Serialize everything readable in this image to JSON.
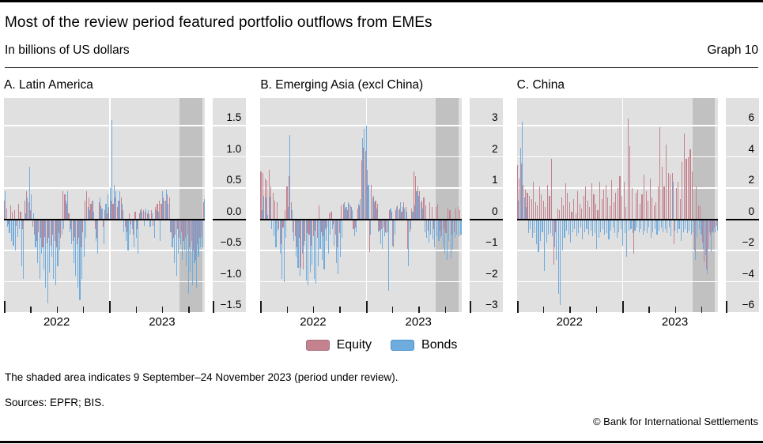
{
  "header": {
    "title": "Most of the review period featured portfolio outflows from EMEs",
    "subtitle": "In billions of US dollars",
    "graph_label": "Graph 10"
  },
  "colors": {
    "equity": "#c4828f",
    "equity_border": "#aa6e7c",
    "bonds": "#6facde",
    "bonds_border": "#4d92cc",
    "plot_bg": "#e0e0e0",
    "shade": "#c1c1c1",
    "gridline": "#ffffff",
    "zero_line": "#000000"
  },
  "legend": {
    "items": [
      {
        "label": "Equity",
        "color_key": "equity"
      },
      {
        "label": "Bonds",
        "color_key": "bonds"
      }
    ]
  },
  "footer": {
    "note": "The shaded area indicates 9 September–24 November 2023 (period under review).",
    "sources": "Sources: EPFR; BIS.",
    "copyright": "© Bank for International Settlements"
  },
  "chart_data": [
    {
      "type": "bar",
      "title": "A. Latin America",
      "x_axis": {
        "frequency": "weekly",
        "start": "Jan 2022",
        "end": "Nov 2023",
        "year_labels": [
          "2022",
          "2023"
        ],
        "year_label_pcts": [
          26.2,
          78.6
        ],
        "major_tick_pcts": [
          0,
          52.4
        ],
        "minor_tick_pcts": [
          13.1,
          26.2,
          39.3,
          65.5,
          78.6,
          91.7
        ],
        "year_line_pct": 52.4
      },
      "ylim": [
        -1.5,
        1.95
      ],
      "ytick_values": [
        1.5,
        1.0,
        0.5,
        0.0,
        -0.5,
        -1.0,
        -1.5
      ],
      "ytick_labels": [
        "1.5",
        "1.0",
        "0.5",
        "0.0",
        "−0.5",
        "−1.0",
        "−1.5"
      ],
      "shade": {
        "from_pct": 87.3,
        "to_pct": 98.5,
        "meaning": "9 September–24 November 2023 (period under review)"
      },
      "series": [
        {
          "name": "Equity",
          "color_key": "equity",
          "values": [
            0.3,
            0.18,
            -0.08,
            0.22,
            0.12,
            0.15,
            -0.1,
            0.25,
            0.12,
            -0.15,
            0.3,
            0.45,
            0.28,
            0.15,
            -0.12,
            -0.25,
            -0.35,
            -0.2,
            -0.3,
            -0.45,
            -0.28,
            -0.38,
            -0.3,
            -0.42,
            -0.25,
            -0.35,
            -0.45,
            -0.22,
            -0.3,
            0.45,
            0.4,
            0.25,
            0.1,
            -0.15,
            -0.35,
            -0.28,
            -0.4,
            -0.3,
            -0.45,
            -0.2,
            0.3,
            0.45,
            0.35,
            0.25,
            0.3,
            -0.15,
            -0.3,
            0.28,
            0.22,
            -0.12,
            0.15,
            0.1,
            0.2,
            0.3,
            0.25,
            0.35,
            0.2,
            0.3,
            0.35,
            0.15,
            -0.12,
            -0.2,
            0.1,
            -0.08,
            -0.25,
            0.12,
            -0.15,
            0.1,
            0.18,
            0.15,
            0.12,
            0.1,
            0.08,
            0.15,
            -0.1,
            0.2,
            0.25,
            0.3,
            0.25,
            0.35,
            0.3,
            0.4,
            0.35,
            -0.2,
            -0.3,
            -0.25,
            -0.15,
            -0.3,
            -0.2,
            -0.35,
            -0.3,
            -0.25,
            -0.45,
            -0.35,
            -0.5,
            -0.65,
            -0.4,
            -0.3,
            -0.3,
            0.28
          ]
        },
        {
          "name": "Bonds",
          "color_key": "bonds",
          "values": [
            0.45,
            -0.12,
            -0.22,
            -0.35,
            -0.42,
            -0.5,
            -0.28,
            -0.15,
            -0.75,
            -0.95,
            0.1,
            0.35,
            0.85,
            0.4,
            0.1,
            -0.45,
            -0.7,
            -0.95,
            -0.55,
            -0.8,
            -1.1,
            -1.35,
            -0.85,
            -0.6,
            -0.95,
            -1.05,
            -0.75,
            -0.5,
            -0.25,
            -0.15,
            0.3,
            0.45,
            -0.2,
            -0.4,
            -0.7,
            -0.9,
            -1.1,
            -1.3,
            -0.95,
            -0.6,
            -0.3,
            0.2,
            0.15,
            0.3,
            0.12,
            -0.35,
            -0.55,
            0.35,
            0.18,
            -0.4,
            0.25,
            0.4,
            0.5,
            1.6,
            0.55,
            0.45,
            0.3,
            0.45,
            0.25,
            -0.2,
            -0.35,
            -0.5,
            -0.25,
            -0.15,
            -0.45,
            -0.3,
            -0.55,
            0.15,
            0.12,
            -0.1,
            0.18,
            0.15,
            -0.12,
            0.1,
            -0.3,
            0.15,
            0.12,
            -0.35,
            0.45,
            0.3,
            0.48,
            0.25,
            -0.2,
            -0.45,
            -0.7,
            -0.9,
            -0.55,
            -0.4,
            -0.65,
            -0.5,
            -0.75,
            -1.2,
            -0.85,
            -1.05,
            -0.7,
            -1.1,
            -0.6,
            -0.45,
            -0.45,
            0.33
          ]
        }
      ]
    },
    {
      "type": "bar",
      "title": "B. Emerging Asia (excl China)",
      "x_axis": {
        "frequency": "weekly",
        "start": "Jan 2022",
        "end": "Nov 2023",
        "year_labels": [
          "2022",
          "2023"
        ],
        "year_label_pcts": [
          26.2,
          78.6
        ],
        "major_tick_pcts": [
          0,
          52.4
        ],
        "minor_tick_pcts": [
          13.1,
          26.2,
          39.3,
          65.5,
          78.6,
          91.7
        ],
        "year_line_pct": 52.4
      },
      "ylim": [
        -3,
        3.9
      ],
      "ytick_values": [
        3,
        2,
        1,
        0,
        -1,
        -2,
        -3
      ],
      "ytick_labels": [
        "3",
        "2",
        "1",
        "0",
        "−1",
        "−2",
        "−3"
      ],
      "shade": {
        "from_pct": 87.3,
        "to_pct": 98.5,
        "meaning": "9 September–24 November 2023 (period under review)"
      },
      "series": [
        {
          "name": "Equity",
          "color_key": "equity",
          "values": [
            1.55,
            1.5,
            1.3,
            1.25,
            1.6,
            1.05,
            0.85,
            0.6,
            0.55,
            -0.3,
            -0.8,
            -0.25,
            0.3,
            1.05,
            1.4,
            0.55,
            -0.4,
            -0.55,
            -0.9,
            -0.6,
            -1.55,
            -1.6,
            -0.7,
            -0.45,
            -0.5,
            -0.85,
            -0.55,
            -0.35,
            -0.6,
            0.45,
            -0.4,
            -0.55,
            -0.3,
            -0.25,
            0.2,
            0.25,
            -0.15,
            -0.5,
            -0.9,
            -0.45,
            0.45,
            0.5,
            0.35,
            0.3,
            0.5,
            0.4,
            -0.3,
            -0.25,
            0.35,
            0.45,
            1.9,
            2.3,
            2.2,
            1.6,
            -1.05,
            1.1,
            0.75,
            0.6,
            0.5,
            -0.35,
            -0.3,
            -0.25,
            -0.4,
            -0.4,
            0.3,
            0.25,
            -0.9,
            0.3,
            0.45,
            0.35,
            0.25,
            0.55,
            0.4,
            -0.95,
            -0.4,
            0.35,
            1.55,
            1.4,
            1.05,
            0.9,
            0.6,
            0.7,
            0.45,
            -0.35,
            0.55,
            0.4,
            -0.3,
            0.4,
            0.5,
            -0.35,
            -0.55,
            -0.3,
            -0.45,
            0.35,
            0.3,
            -0.5,
            -0.4,
            0.35,
            0.4,
            0.3
          ]
        },
        {
          "name": "Bonds",
          "color_key": "bonds",
          "values": [
            0.3,
            0.75,
            0.7,
            0.15,
            0.72,
            -0.3,
            -0.55,
            -0.9,
            -0.35,
            -1.1,
            -1.9,
            -2.0,
            -0.6,
            0.4,
            2.7,
            0.3,
            -0.7,
            -1.2,
            -1.55,
            -1.8,
            -1.1,
            -0.85,
            -1.95,
            -2.1,
            -1.7,
            -1.45,
            -1.9,
            -2.05,
            -1.5,
            -0.95,
            -1.3,
            -1.6,
            -0.7,
            -1.1,
            -0.5,
            -0.3,
            -0.85,
            -1.4,
            -1.75,
            -1.2,
            -0.6,
            0.55,
            0.4,
            0.55,
            0.45,
            0.3,
            -0.55,
            -0.4,
            0.5,
            0.65,
            2.6,
            2.9,
            3.0,
            1.1,
            -0.5,
            0.7,
            0.55,
            0.35,
            -0.4,
            -0.8,
            -0.95,
            -0.55,
            -0.45,
            -2.3,
            0.35,
            -0.85,
            -0.5,
            0.4,
            0.3,
            0.55,
            0.4,
            0.35,
            0.25,
            -1.5,
            -0.3,
            0.25,
            0.45,
            0.9,
            0.75,
            0.55,
            0.35,
            -0.4,
            -0.6,
            -0.75,
            -0.5,
            -0.65,
            -0.9,
            -0.55,
            -0.7,
            -0.6,
            -0.9,
            -1.1,
            -1.3,
            -0.7,
            -1.25,
            -0.95,
            -0.6,
            -0.5,
            -0.55,
            -0.5
          ]
        }
      ]
    },
    {
      "type": "bar",
      "title": "C. China",
      "x_axis": {
        "frequency": "weekly",
        "start": "Jan 2022",
        "end": "Nov 2023",
        "year_labels": [
          "2022",
          "2023"
        ],
        "year_label_pcts": [
          26.2,
          78.6
        ],
        "major_tick_pcts": [
          0,
          52.4
        ],
        "minor_tick_pcts": [
          13.1,
          26.2,
          39.3,
          65.5,
          78.6,
          91.7
        ],
        "year_line_pct": 52.4
      },
      "ylim": [
        -6,
        7.8
      ],
      "ytick_values": [
        6,
        4,
        2,
        0,
        -2,
        -4,
        -6
      ],
      "ytick_labels": [
        "6",
        "4",
        "2",
        "0",
        "−2",
        "−4",
        "−6"
      ],
      "shade": {
        "from_pct": 87.3,
        "to_pct": 98.5,
        "meaning": "9 September–24 November 2023 (period under review)"
      },
      "series": [
        {
          "name": "Equity",
          "color_key": "equity",
          "values": [
            3.5,
            2.6,
            3.6,
            2.2,
            1.9,
            1.7,
            1.5,
            1.3,
            2.4,
            1.1,
            0.9,
            2.1,
            1.6,
            1.2,
            0.8,
            2.2,
            1.5,
            3.9,
            -2.9,
            -0.8,
            0.7,
            0.6,
            1.4,
            0.9,
            2.3,
            1.7,
            1.1,
            0.5,
            1.3,
            0.4,
            1.8,
            1.0,
            0.7,
            1.5,
            2.1,
            1.2,
            0.8,
            2.3,
            1.6,
            1.0,
            0.6,
            2.4,
            1.3,
            1.9,
            2.2,
            1.4,
            0.9,
            2.5,
            1.1,
            1.7,
            2.0,
            2.8,
            1.5,
            2.4,
            0.8,
            6.5,
            4.7,
            2.0,
            -2.2,
            1.7,
            1.9,
            1.0,
            1.6,
            2.9,
            1.8,
            1.2,
            2.6,
            1.4,
            0.9,
            1.1,
            2.1,
            5.9,
            3.4,
            2.1,
            4.8,
            3.0,
            2.9,
            3.0,
            -1.6,
            2.0,
            2.4,
            1.3,
            3.7,
            5.5,
            3.9,
            4.0,
            4.5,
            3.1,
            -2.0,
            2.1,
            0.9,
            0.85,
            -1.5,
            -2.7,
            -3.2,
            -1.9,
            -1.0,
            -0.75,
            -0.5,
            -0.4
          ]
        },
        {
          "name": "Bonds",
          "color_key": "bonds",
          "values": [
            1.2,
            4.6,
            6.3,
            1.4,
            0.8,
            -0.9,
            -0.6,
            -1.2,
            -0.9,
            -1.6,
            -2.1,
            -1.4,
            -0.8,
            -3.3,
            -1.5,
            -1.0,
            -0.9,
            -1.1,
            -1.8,
            -2.6,
            -4.8,
            -5.5,
            -2.0,
            -1.2,
            -0.7,
            -1.0,
            -1.5,
            -0.8,
            -0.6,
            -1.1,
            -0.9,
            -0.5,
            -1.3,
            -0.8,
            -0.6,
            -1.0,
            -0.7,
            -1.1,
            -0.9,
            -1.9,
            -1.2,
            -0.8,
            -0.6,
            -1.0,
            -0.9,
            -1.3,
            -0.7,
            -0.5,
            -0.9,
            -1.2,
            -0.8,
            -0.6,
            -1.7,
            -0.9,
            -2.4,
            -0.7,
            -0.6,
            -0.9,
            -0.7,
            -0.5,
            -0.8,
            -0.6,
            -1.0,
            -0.7,
            -0.9,
            -0.5,
            -1.2,
            -0.8,
            -0.6,
            -1.0,
            -0.7,
            -0.5,
            -0.8,
            -0.6,
            -0.9,
            -0.5,
            -1.1,
            2.4,
            -0.7,
            -0.9,
            -0.6,
            -1.4,
            -0.8,
            -0.6,
            -0.9,
            -0.7,
            -1.0,
            -0.8,
            -2.6,
            -1.2,
            -0.6,
            -1.0,
            -1.9,
            -2.3,
            -3.5,
            -0.8,
            -2.1,
            -0.9,
            -0.8,
            -0.7
          ]
        }
      ]
    }
  ]
}
